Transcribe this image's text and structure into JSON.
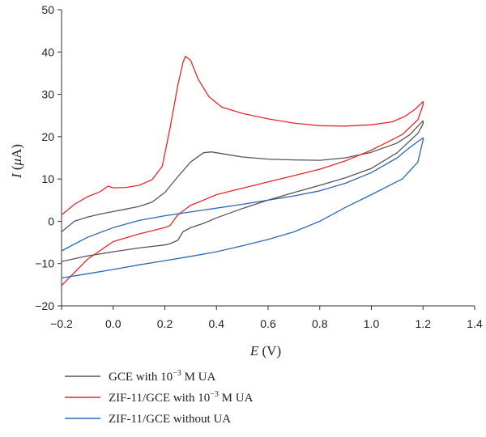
{
  "chart_data": {
    "type": "line",
    "xlabel": {
      "symbol": "E",
      "unit": " (V)"
    },
    "ylabel": {
      "symbol": "I",
      "unit_open": " (",
      "unit_mu": "μ",
      "unit_rest": "A)"
    },
    "xlim": [
      -0.2,
      1.4
    ],
    "ylim": [
      -20,
      50
    ],
    "xticks": [
      -0.2,
      0.0,
      0.2,
      0.4,
      0.6,
      0.8,
      1.0,
      1.2,
      1.4
    ],
    "xtick_labels": [
      "−0.2",
      "0.0",
      "0.2",
      "0.4",
      "0.6",
      "0.8",
      "1.0",
      "1.2",
      "1.4"
    ],
    "yticks": [
      -20,
      -10,
      0,
      10,
      20,
      30,
      40,
      50
    ],
    "ytick_labels": [
      "−20",
      "−10",
      "0",
      "10",
      "20",
      "30",
      "40",
      "50"
    ],
    "legend_position": "bottom-left",
    "grid": false,
    "series": [
      {
        "name_parts": [
          "GCE with 10",
          "−3",
          " M UA"
        ],
        "color": "#555555",
        "points": [
          [
            -0.2,
            -2.5
          ],
          [
            -0.15,
            0.0
          ],
          [
            -0.1,
            1.0
          ],
          [
            -0.05,
            1.7
          ],
          [
            0.0,
            2.3
          ],
          [
            0.05,
            2.9
          ],
          [
            0.1,
            3.5
          ],
          [
            0.15,
            4.5
          ],
          [
            0.2,
            6.8
          ],
          [
            0.25,
            10.5
          ],
          [
            0.3,
            14.0
          ],
          [
            0.35,
            16.2
          ],
          [
            0.38,
            16.4
          ],
          [
            0.42,
            16.0
          ],
          [
            0.5,
            15.2
          ],
          [
            0.6,
            14.7
          ],
          [
            0.7,
            14.5
          ],
          [
            0.8,
            14.4
          ],
          [
            0.9,
            15.0
          ],
          [
            1.0,
            16.3
          ],
          [
            1.1,
            18.5
          ],
          [
            1.15,
            20.5
          ],
          [
            1.18,
            22.5
          ],
          [
            1.2,
            23.7
          ],
          [
            1.2,
            23.0
          ],
          [
            1.18,
            20.8
          ],
          [
            1.1,
            16.2
          ],
          [
            1.0,
            12.5
          ],
          [
            0.9,
            10.3
          ],
          [
            0.8,
            8.5
          ],
          [
            0.7,
            6.8
          ],
          [
            0.6,
            5.0
          ],
          [
            0.5,
            3.0
          ],
          [
            0.4,
            0.8
          ],
          [
            0.35,
            -0.5
          ],
          [
            0.3,
            -1.5
          ],
          [
            0.27,
            -2.5
          ],
          [
            0.25,
            -4.5
          ],
          [
            0.22,
            -5.3
          ],
          [
            0.2,
            -5.6
          ],
          [
            0.1,
            -6.3
          ],
          [
            0.0,
            -7.2
          ],
          [
            -0.1,
            -8.2
          ],
          [
            -0.2,
            -9.5
          ]
        ]
      },
      {
        "name_parts": [
          "ZIF-11/GCE with 10",
          "−3",
          " M UA"
        ],
        "color": "#e8262b",
        "points": [
          [
            -0.2,
            1.5
          ],
          [
            -0.15,
            4.0
          ],
          [
            -0.1,
            5.8
          ],
          [
            -0.05,
            7.0
          ],
          [
            -0.02,
            8.3
          ],
          [
            0.0,
            7.9
          ],
          [
            0.05,
            8.0
          ],
          [
            0.1,
            8.5
          ],
          [
            0.15,
            9.8
          ],
          [
            0.19,
            13.0
          ],
          [
            0.22,
            22.0
          ],
          [
            0.25,
            32.0
          ],
          [
            0.27,
            37.5
          ],
          [
            0.28,
            39.0
          ],
          [
            0.3,
            38.0
          ],
          [
            0.33,
            33.5
          ],
          [
            0.37,
            29.5
          ],
          [
            0.42,
            27.0
          ],
          [
            0.5,
            25.5
          ],
          [
            0.6,
            24.2
          ],
          [
            0.7,
            23.2
          ],
          [
            0.8,
            22.6
          ],
          [
            0.9,
            22.5
          ],
          [
            1.0,
            22.8
          ],
          [
            1.08,
            23.5
          ],
          [
            1.13,
            24.8
          ],
          [
            1.17,
            26.5
          ],
          [
            1.2,
            28.3
          ],
          [
            1.2,
            27.5
          ],
          [
            1.18,
            24.0
          ],
          [
            1.12,
            20.5
          ],
          [
            1.0,
            16.8
          ],
          [
            0.9,
            14.3
          ],
          [
            0.8,
            12.3
          ],
          [
            0.7,
            10.8
          ],
          [
            0.6,
            9.3
          ],
          [
            0.5,
            7.8
          ],
          [
            0.4,
            6.3
          ],
          [
            0.33,
            4.5
          ],
          [
            0.3,
            3.8
          ],
          [
            0.25,
            1.5
          ],
          [
            0.22,
            -1.0
          ],
          [
            0.2,
            -1.5
          ],
          [
            0.1,
            -3.0
          ],
          [
            0.0,
            -4.8
          ],
          [
            -0.1,
            -9.0
          ],
          [
            -0.2,
            -15.2
          ]
        ]
      },
      {
        "name_parts": [
          "ZIF-11/GCE without UA"
        ],
        "color": "#2b68b5",
        "points": [
          [
            -0.2,
            -7.0
          ],
          [
            -0.1,
            -3.8
          ],
          [
            0.0,
            -1.5
          ],
          [
            0.1,
            0.2
          ],
          [
            0.2,
            1.3
          ],
          [
            0.3,
            2.2
          ],
          [
            0.4,
            3.1
          ],
          [
            0.5,
            4.0
          ],
          [
            0.6,
            5.0
          ],
          [
            0.7,
            6.0
          ],
          [
            0.8,
            7.2
          ],
          [
            0.9,
            9.0
          ],
          [
            1.0,
            11.5
          ],
          [
            1.1,
            15.0
          ],
          [
            1.15,
            17.5
          ],
          [
            1.2,
            19.7
          ],
          [
            1.2,
            19.2
          ],
          [
            1.18,
            14.0
          ],
          [
            1.12,
            10.0
          ],
          [
            1.0,
            6.3
          ],
          [
            0.9,
            3.3
          ],
          [
            0.8,
            0.0
          ],
          [
            0.7,
            -2.5
          ],
          [
            0.6,
            -4.3
          ],
          [
            0.5,
            -5.8
          ],
          [
            0.4,
            -7.2
          ],
          [
            0.3,
            -8.3
          ],
          [
            0.2,
            -9.3
          ],
          [
            0.1,
            -10.3
          ],
          [
            0.0,
            -11.4
          ],
          [
            -0.1,
            -12.4
          ],
          [
            -0.2,
            -13.4
          ]
        ]
      }
    ]
  }
}
